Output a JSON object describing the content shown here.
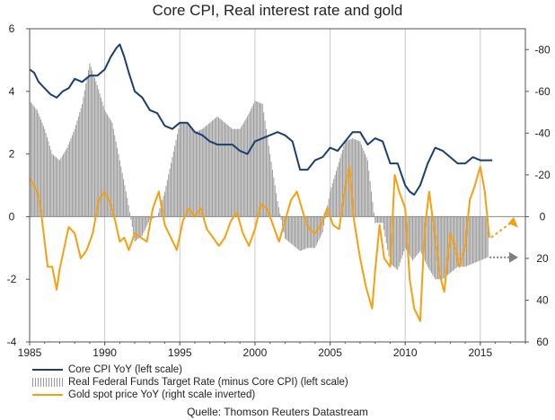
{
  "chart_data": {
    "type": "line",
    "title": "Core CPI, Real interest rate and gold",
    "x_ticks": [
      "1985",
      "1990",
      "1995",
      "2000",
      "2005",
      "2010",
      "2015"
    ],
    "x_range": [
      1985,
      2018
    ],
    "y_left": {
      "ticks": [
        "-4",
        "-2",
        "0",
        "2",
        "4",
        "6"
      ],
      "range": [
        -4,
        6
      ]
    },
    "y_right": {
      "ticks": [
        "-80",
        "-60",
        "-40",
        "-20",
        "0",
        "20",
        "40",
        "60"
      ],
      "range": [
        60,
        -90
      ],
      "inverted": true
    },
    "grid": "vertical at ticks",
    "legend_placement": "bottom-left",
    "colors": {
      "core_cpi": "#1a3f73",
      "real_rate": "#9a9a9a",
      "gold": "#f5a011",
      "arrow_grey": "#7f7f7f"
    },
    "series": [
      {
        "name": "Core CPI YoY (left scale)",
        "axis": "left",
        "style": "line",
        "x": [
          1985.0,
          1985.3,
          1985.6,
          1986.0,
          1986.4,
          1986.8,
          1987.2,
          1987.6,
          1988.0,
          1988.5,
          1989.0,
          1989.5,
          1990.0,
          1990.4,
          1990.8,
          1991.0,
          1991.3,
          1991.6,
          1992.0,
          1992.5,
          1993.0,
          1993.5,
          1994.0,
          1994.5,
          1995.0,
          1995.5,
          1996.0,
          1996.5,
          1997.0,
          1997.5,
          1998.0,
          1998.5,
          1999.0,
          1999.5,
          2000.0,
          2000.5,
          2001.0,
          2001.5,
          2002.0,
          2002.5,
          2003.0,
          2003.5,
          2004.0,
          2004.5,
          2005.0,
          2005.5,
          2006.0,
          2006.5,
          2007.0,
          2007.5,
          2008.0,
          2008.5,
          2009.0,
          2009.5,
          2010.0,
          2010.3,
          2010.6,
          2011.0,
          2011.5,
          2012.0,
          2012.5,
          2013.0,
          2013.5,
          2014.0,
          2014.5,
          2015.0,
          2015.5,
          2015.8
        ],
        "values": [
          4.7,
          4.6,
          4.3,
          4.1,
          3.9,
          3.8,
          4.0,
          4.1,
          4.4,
          4.3,
          4.5,
          4.5,
          4.7,
          5.1,
          5.4,
          5.5,
          5.1,
          4.6,
          4.0,
          3.8,
          3.4,
          3.3,
          2.9,
          2.8,
          3.0,
          3.0,
          2.7,
          2.6,
          2.4,
          2.3,
          2.3,
          2.3,
          2.1,
          2.0,
          2.4,
          2.5,
          2.6,
          2.7,
          2.6,
          2.4,
          1.5,
          1.5,
          1.8,
          1.9,
          2.2,
          2.1,
          2.4,
          2.7,
          2.7,
          2.3,
          2.5,
          2.4,
          1.7,
          1.7,
          1.0,
          0.8,
          0.7,
          1.0,
          1.7,
          2.2,
          2.1,
          1.9,
          1.7,
          1.7,
          1.9,
          1.8,
          1.8,
          1.8
        ]
      },
      {
        "name": "Real Federal Funds Target Rate (minus Core CPI) (left scale)",
        "axis": "left",
        "style": "hatched-bars",
        "x": [
          1985.0,
          1985.5,
          1986.0,
          1986.5,
          1987.0,
          1987.5,
          1988.0,
          1988.5,
          1989.0,
          1989.5,
          1990.0,
          1990.5,
          1991.0,
          1991.5,
          1992.0,
          1992.5,
          1993.0,
          1993.5,
          1994.0,
          1994.5,
          1995.0,
          1995.5,
          1996.0,
          1996.5,
          1997.0,
          1997.5,
          1998.0,
          1998.5,
          1999.0,
          1999.5,
          2000.0,
          2000.5,
          2001.0,
          2001.5,
          2002.0,
          2002.5,
          2003.0,
          2003.5,
          2004.0,
          2004.5,
          2005.0,
          2005.5,
          2006.0,
          2006.5,
          2007.0,
          2007.5,
          2008.0,
          2008.5,
          2009.0,
          2009.5,
          2010.0,
          2010.5,
          2011.0,
          2011.5,
          2012.0,
          2012.5,
          2013.0,
          2013.5,
          2014.0,
          2014.5,
          2015.0,
          2015.5
        ],
        "values": [
          3.7,
          3.4,
          2.8,
          2.0,
          1.8,
          2.2,
          2.8,
          3.6,
          4.9,
          4.2,
          3.4,
          3.0,
          1.8,
          0.6,
          -0.8,
          -0.6,
          -0.1,
          0.0,
          0.8,
          1.9,
          3.0,
          3.0,
          2.7,
          2.8,
          3.0,
          3.2,
          3.0,
          2.8,
          2.8,
          3.2,
          3.7,
          3.6,
          2.0,
          0.5,
          -0.7,
          -0.9,
          -1.1,
          -1.0,
          -1.0,
          -0.5,
          0.8,
          1.6,
          2.4,
          2.5,
          2.4,
          1.8,
          -0.2,
          -0.2,
          -1.5,
          -1.7,
          -1.0,
          -1.4,
          -1.1,
          -1.6,
          -2.0,
          -2.0,
          -1.8,
          -1.6,
          -1.6,
          -1.5,
          -1.4,
          -1.3
        ]
      },
      {
        "name": "Gold spot price YoY (right scale inverted)",
        "axis": "right",
        "style": "line",
        "x": [
          1985.0,
          1985.3,
          1985.6,
          1985.8,
          1986.0,
          1986.2,
          1986.5,
          1986.8,
          1987.0,
          1987.3,
          1987.6,
          1988.0,
          1988.4,
          1988.8,
          1989.2,
          1989.6,
          1990.0,
          1990.4,
          1990.7,
          1991.0,
          1991.3,
          1991.6,
          1992.0,
          1992.4,
          1992.8,
          1993.2,
          1993.6,
          1994.0,
          1994.4,
          1994.8,
          1995.2,
          1995.6,
          1996.0,
          1996.4,
          1996.8,
          1997.2,
          1997.6,
          1998.0,
          1998.4,
          1998.8,
          1999.2,
          1999.6,
          2000.0,
          2000.4,
          2000.8,
          2001.2,
          2001.6,
          2002.0,
          2002.4,
          2002.8,
          2003.2,
          2003.6,
          2004.0,
          2004.4,
          2004.8,
          2005.2,
          2005.6,
          2006.0,
          2006.3,
          2006.6,
          2007.0,
          2007.4,
          2007.8,
          2008.0,
          2008.3,
          2008.6,
          2009.0,
          2009.3,
          2009.6,
          2010.0,
          2010.3,
          2010.6,
          2011.0,
          2011.3,
          2011.6,
          2012.0,
          2012.3,
          2012.6,
          2013.0,
          2013.3,
          2013.6,
          2014.0,
          2014.3,
          2014.6,
          2015.0,
          2015.3,
          2015.6
        ],
        "values": [
          -18,
          -15,
          -10,
          0,
          12,
          24,
          24,
          35,
          25,
          15,
          5,
          8,
          20,
          16,
          8,
          -8,
          -12,
          -6,
          2,
          12,
          10,
          16,
          8,
          10,
          12,
          -4,
          -12,
          4,
          10,
          16,
          2,
          -4,
          0,
          -4,
          6,
          10,
          14,
          10,
          2,
          -2,
          8,
          14,
          6,
          -6,
          -4,
          4,
          12,
          2,
          -8,
          -12,
          -2,
          6,
          8,
          4,
          -4,
          4,
          6,
          -14,
          -24,
          2,
          20,
          34,
          44,
          26,
          4,
          20,
          24,
          -20,
          -12,
          -4,
          30,
          44,
          50,
          6,
          -12,
          10,
          28,
          36,
          8,
          14,
          24,
          14,
          -8,
          -14,
          -24,
          -12,
          10
        ]
      }
    ],
    "annotations": {
      "gold_projection_arrow_to": "4",
      "real_rate_projection_label": "20"
    },
    "legend": [
      "Core CPI YoY (left scale)",
      "Real Federal Funds Target Rate (minus Core CPI) (left scale)",
      "Gold spot price YoY (right scale inverted)"
    ],
    "source": "Quelle: Thomson Reuters Datastream"
  }
}
